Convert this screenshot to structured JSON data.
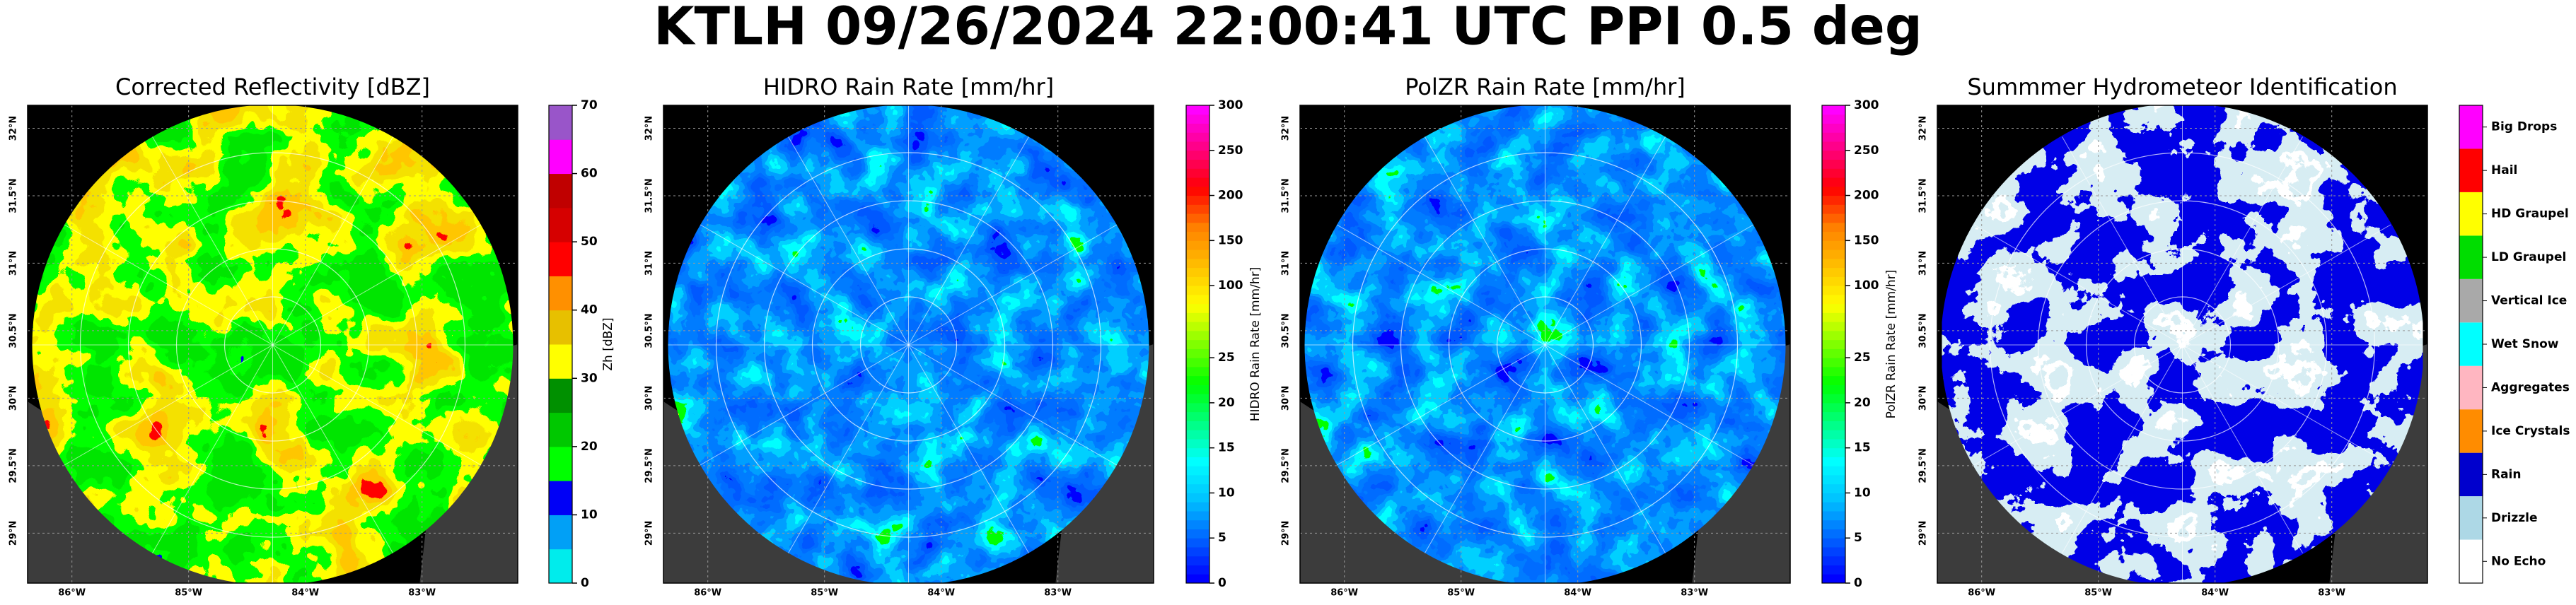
{
  "title": "KTLH 09/26/2024 22:00:41 UTC PPI 0.5 deg",
  "panels": [
    {
      "title": "Corrected Reflectivity [dBZ]",
      "xlim": [
        -86.38,
        -82.18
      ],
      "ylim": [
        28.63,
        32.17
      ],
      "xticks": [
        {
          "value": -86,
          "label": "86°W"
        },
        {
          "value": -85,
          "label": "85°W"
        },
        {
          "value": -84,
          "label": "84°W"
        },
        {
          "value": -83,
          "label": "83°W"
        }
      ],
      "yticks": [
        {
          "value": 29,
          "label": "29°N"
        },
        {
          "value": 29.5,
          "label": "29.5°N"
        },
        {
          "value": 30,
          "label": "30°N"
        },
        {
          "value": 30.5,
          "label": "30.5°N"
        },
        {
          "value": 31,
          "label": "31°N"
        },
        {
          "value": 31.5,
          "label": "31.5°N"
        },
        {
          "value": 32,
          "label": "32°N"
        }
      ],
      "colorbar": {
        "label": "Zh [dBZ]",
        "levels": [
          0,
          5,
          10,
          15,
          20,
          25,
          30,
          35,
          40,
          45,
          50,
          55,
          60,
          65,
          70
        ],
        "colors": [
          "#00ecec",
          "#01a0f6",
          "#0000f6",
          "#00ff00",
          "#00c800",
          "#009000",
          "#ffff00",
          "#e7c000",
          "#ff9000",
          "#ff0000",
          "#d60000",
          "#c00000",
          "#ff00ff",
          "#9955c9"
        ],
        "ticks": [
          0,
          10,
          20,
          30,
          40,
          50,
          60,
          70
        ]
      }
    },
    {
      "title": "HIDRO Rain Rate [mm/hr]",
      "xlim": [
        -86.38,
        -82.18
      ],
      "ylim": [
        28.63,
        32.17
      ],
      "xticks": [
        {
          "value": -86,
          "label": "86°W"
        },
        {
          "value": -85,
          "label": "85°W"
        },
        {
          "value": -84,
          "label": "84°W"
        },
        {
          "value": -83,
          "label": "83°W"
        }
      ],
      "yticks": [
        {
          "value": 29,
          "label": "29°N"
        },
        {
          "value": 29.5,
          "label": "29.5°N"
        },
        {
          "value": 30,
          "label": "30°N"
        },
        {
          "value": 30.5,
          "label": "30.5°N"
        },
        {
          "value": 31,
          "label": "31°N"
        },
        {
          "value": 31.5,
          "label": "31.5°N"
        },
        {
          "value": 32,
          "label": "32°N"
        }
      ],
      "colorbar": {
        "label": "HIDRO Rain Rate [mm/hr]",
        "levels": [
          0,
          1,
          2,
          3,
          4,
          5,
          6,
          7,
          8,
          9,
          10,
          11,
          12,
          13,
          14,
          15,
          16,
          17,
          18,
          19,
          20,
          21,
          22,
          23,
          24,
          25,
          30,
          40,
          50,
          60,
          70,
          80,
          90,
          100,
          110,
          120,
          130,
          140,
          150,
          160,
          170,
          180,
          190,
          200,
          210,
          220,
          230,
          240,
          250,
          260,
          270,
          280,
          290,
          300
        ],
        "colormap": [
          "#0000ff",
          "#0060ff",
          "#00c0ff",
          "#00ffff",
          "#00ff80",
          "#00ff00",
          "#80ff00",
          "#ffff00",
          "#ffc000",
          "#ff8000",
          "#ff0000",
          "#ff0080",
          "#ff00ff"
        ],
        "ticks": [
          0,
          5,
          10,
          15,
          20,
          25,
          100,
          150,
          200,
          250,
          300
        ]
      }
    },
    {
      "title": "PolZR Rain Rate [mm/hr]",
      "xlim": [
        -86.38,
        -82.18
      ],
      "ylim": [
        28.63,
        32.17
      ],
      "xticks": [
        {
          "value": -86,
          "label": "86°W"
        },
        {
          "value": -85,
          "label": "85°W"
        },
        {
          "value": -84,
          "label": "84°W"
        },
        {
          "value": -83,
          "label": "83°W"
        }
      ],
      "yticks": [
        {
          "value": 29,
          "label": "29°N"
        },
        {
          "value": 29.5,
          "label": "29.5°N"
        },
        {
          "value": 30,
          "label": "30°N"
        },
        {
          "value": 30.5,
          "label": "30.5°N"
        },
        {
          "value": 31,
          "label": "31°N"
        },
        {
          "value": 31.5,
          "label": "31.5°N"
        },
        {
          "value": 32,
          "label": "32°N"
        }
      ],
      "colorbar": {
        "label": "PolZR Rain Rate [mm/hr]",
        "levels": [
          0,
          1,
          2,
          3,
          4,
          5,
          6,
          7,
          8,
          9,
          10,
          11,
          12,
          13,
          14,
          15,
          16,
          17,
          18,
          19,
          20,
          21,
          22,
          23,
          24,
          25,
          30,
          40,
          50,
          60,
          70,
          80,
          90,
          100,
          110,
          120,
          130,
          140,
          150,
          160,
          170,
          180,
          190,
          200,
          210,
          220,
          230,
          240,
          250,
          260,
          270,
          280,
          290,
          300
        ],
        "colormap": [
          "#0000ff",
          "#0060ff",
          "#00c0ff",
          "#00ffff",
          "#00ff80",
          "#00ff00",
          "#80ff00",
          "#ffff00",
          "#ffc000",
          "#ff8000",
          "#ff0000",
          "#ff0080",
          "#ff00ff"
        ],
        "ticks": [
          0,
          5,
          10,
          15,
          20,
          25,
          100,
          150,
          200,
          250,
          300
        ]
      }
    },
    {
      "title": "Summmer Hydrometeor Identification",
      "xlim": [
        -86.38,
        -82.18
      ],
      "ylim": [
        28.63,
        32.17
      ],
      "xticks": [
        {
          "value": -86,
          "label": "86°W"
        },
        {
          "value": -85,
          "label": "85°W"
        },
        {
          "value": -84,
          "label": "84°W"
        },
        {
          "value": -83,
          "label": "83°W"
        }
      ],
      "yticks": [
        {
          "value": 29,
          "label": "29°N"
        },
        {
          "value": 29.5,
          "label": "29.5°N"
        },
        {
          "value": 30,
          "label": "30°N"
        },
        {
          "value": 30.5,
          "label": "30.5°N"
        },
        {
          "value": 31,
          "label": "31°N"
        },
        {
          "value": 31.5,
          "label": "31.5°N"
        },
        {
          "value": 32,
          "label": "32°N"
        }
      ],
      "colorbar": {
        "categories": [
          "No Echo",
          "Drizzle",
          "Rain",
          "Ice Crystals",
          "Aggregates",
          "Wet Snow",
          "Vertical Ice",
          "LD Graupel",
          "HD Graupel",
          "Hail",
          "Big Drops"
        ],
        "colors": [
          "#ffffff",
          "#add8e6",
          "#0000cd",
          "#ff8c00",
          "#ffb6c1",
          "#00ffff",
          "#a9a9a9",
          "#00dd00",
          "#ffff00",
          "#ff0000",
          "#ff00ff"
        ]
      }
    }
  ]
}
